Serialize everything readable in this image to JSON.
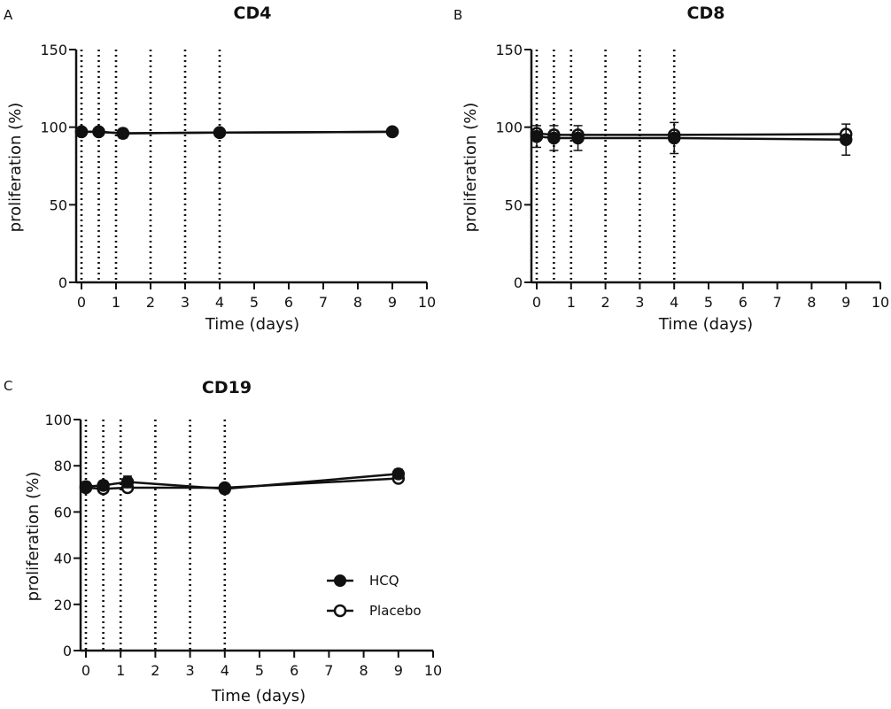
{
  "chart_data": [
    {
      "panel": "A",
      "type": "line",
      "title": "CD4",
      "xlabel": "Time (days)",
      "ylabel": "proliferation (%)",
      "xlim": [
        0,
        10
      ],
      "ylim": [
        0,
        150
      ],
      "xticks": [
        0,
        1,
        2,
        3,
        4,
        5,
        6,
        7,
        8,
        9,
        10
      ],
      "yticks": [
        0,
        50,
        100,
        150
      ],
      "vlines": [
        0,
        0.5,
        1,
        2,
        3,
        4
      ],
      "series": [
        {
          "name": "HCQ",
          "marker": "filled",
          "x": [
            0,
            0.5,
            1.2,
            4,
            9
          ],
          "y": [
            97,
            97,
            96,
            96.5,
            97
          ],
          "err": [
            1,
            1,
            3,
            1,
            0.5
          ]
        },
        {
          "name": "Placebo",
          "marker": "open",
          "x": [
            0,
            0.5,
            1.2,
            4,
            9
          ],
          "y": [
            97,
            97,
            96,
            96.5,
            97
          ],
          "err": [
            1,
            1,
            2,
            1,
            0.5
          ]
        }
      ]
    },
    {
      "panel": "B",
      "type": "line",
      "title": "CD8",
      "xlabel": "Time (days)",
      "ylabel": "proliferation (%)",
      "xlim": [
        0,
        10
      ],
      "ylim": [
        0,
        150
      ],
      "xticks": [
        0,
        1,
        2,
        3,
        4,
        5,
        6,
        7,
        8,
        9,
        10
      ],
      "yticks": [
        0,
        50,
        100,
        150
      ],
      "vlines": [
        0,
        0.5,
        1,
        2,
        3,
        4
      ],
      "series": [
        {
          "name": "HCQ",
          "marker": "filled",
          "x": [
            0,
            0.5,
            1.2,
            4,
            9
          ],
          "y": [
            94,
            93,
            93,
            93,
            92
          ],
          "err": [
            7,
            8,
            8,
            10,
            10
          ]
        },
        {
          "name": "Placebo",
          "marker": "open",
          "x": [
            0,
            0.5,
            1.2,
            4,
            9
          ],
          "y": [
            96,
            95,
            95,
            95,
            95.5
          ],
          "err": [
            2,
            3,
            2,
            2,
            1
          ]
        }
      ]
    },
    {
      "panel": "C",
      "type": "line",
      "title": "CD19",
      "xlabel": "Time (days)",
      "ylabel": "proliferation (%)",
      "xlim": [
        0,
        10
      ],
      "ylim": [
        0,
        100
      ],
      "xticks": [
        0,
        1,
        2,
        3,
        4,
        5,
        6,
        7,
        8,
        9,
        10
      ],
      "yticks": [
        0,
        20,
        40,
        60,
        80,
        100
      ],
      "vlines": [
        0,
        0.5,
        1,
        2,
        3,
        4
      ],
      "legend": "center-right",
      "series": [
        {
          "name": "HCQ",
          "marker": "filled",
          "x": [
            0,
            0.5,
            1.2,
            4,
            9
          ],
          "y": [
            71,
            71.5,
            73,
            70,
            76.5
          ],
          "err": [
            2,
            2,
            2.5,
            2,
            2
          ]
        },
        {
          "name": "Placebo",
          "marker": "open",
          "x": [
            0,
            0.5,
            1.2,
            4,
            9
          ],
          "y": [
            70.5,
            70,
            70.5,
            70.5,
            74.5
          ],
          "err": [
            1.5,
            1.5,
            1.5,
            1.5,
            1.5
          ]
        }
      ]
    }
  ],
  "legend": {
    "hcq": "HCQ",
    "placebo": "Placebo"
  }
}
